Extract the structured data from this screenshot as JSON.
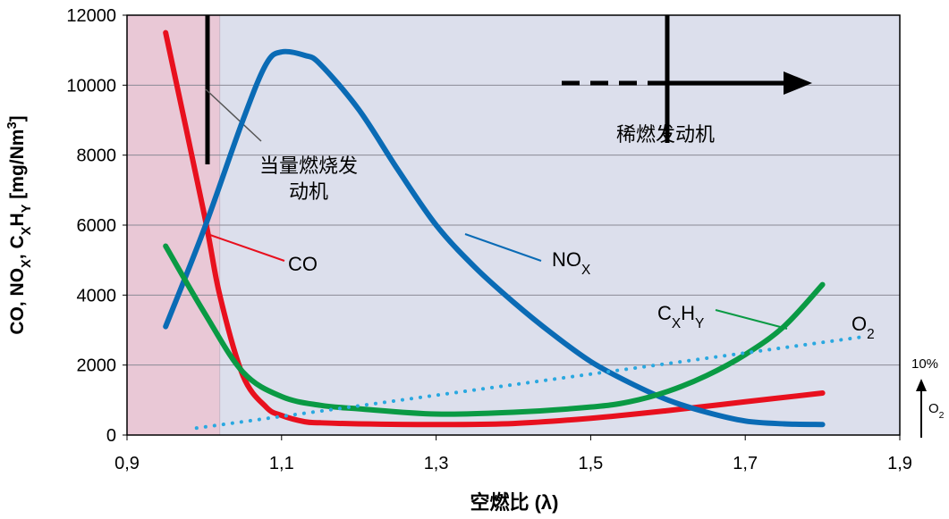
{
  "chart_data": {
    "type": "line",
    "xlabel": "空燃比 (λ)",
    "ylabel_parts": [
      {
        "text": "CO, NO"
      },
      {
        "sub": "X"
      },
      {
        "text": ", C"
      },
      {
        "sub": "X"
      },
      {
        "text": "H"
      },
      {
        "sub": "Y"
      },
      {
        "text": " [mg/Nm"
      },
      {
        "sup": "3"
      },
      {
        "text": "]"
      }
    ],
    "xlim": [
      0.9,
      1.9
    ],
    "xticks": [
      {
        "value": 0.9,
        "label": "0,9"
      },
      {
        "value": 1.1,
        "label": "1,1"
      },
      {
        "value": 1.3,
        "label": "1,3"
      },
      {
        "value": 1.5,
        "label": "1,5"
      },
      {
        "value": 1.7,
        "label": "1,7"
      },
      {
        "value": 1.9,
        "label": "1,9"
      }
    ],
    "ylim": [
      0,
      12000
    ],
    "yticks": [
      0,
      2000,
      4000,
      6000,
      8000,
      10000,
      12000
    ],
    "grid": true,
    "series": [
      {
        "label": [
          {
            "text": "CO"
          }
        ],
        "color": "#e8101e",
        "x": [
          0.95,
          1.0,
          1.02,
          1.05,
          1.08,
          1.1,
          1.13,
          1.15,
          1.2,
          1.3,
          1.4,
          1.5,
          1.6,
          1.7,
          1.8
        ],
        "values": [
          11500,
          6300,
          4000,
          1700,
          800,
          560,
          380,
          350,
          320,
          300,
          330,
          480,
          700,
          950,
          1200
        ]
      },
      {
        "label": [
          {
            "text": "NO"
          },
          {
            "sub": "X"
          }
        ],
        "color": "#0a6bb5",
        "x": [
          0.95,
          1.0,
          1.05,
          1.08,
          1.1,
          1.13,
          1.15,
          1.2,
          1.25,
          1.3,
          1.35,
          1.4,
          1.45,
          1.5,
          1.55,
          1.6,
          1.65,
          1.7,
          1.75,
          1.8
        ],
        "values": [
          3100,
          5900,
          9000,
          10600,
          10950,
          10850,
          10600,
          9300,
          7600,
          6000,
          4800,
          3800,
          2900,
          2100,
          1500,
          1000,
          650,
          400,
          320,
          300
        ]
      },
      {
        "label": [
          {
            "text": "C"
          },
          {
            "sub": "X"
          },
          {
            "text": "H"
          },
          {
            "sub": "Y"
          }
        ],
        "color": "#0a9a44",
        "x": [
          0.95,
          1.0,
          1.05,
          1.1,
          1.15,
          1.2,
          1.3,
          1.4,
          1.5,
          1.55,
          1.6,
          1.65,
          1.7,
          1.75,
          1.8
        ],
        "values": [
          5400,
          3500,
          1800,
          1100,
          850,
          750,
          600,
          650,
          800,
          950,
          1250,
          1700,
          2300,
          3100,
          4300
        ]
      },
      {
        "label": [
          {
            "text": "O"
          },
          {
            "sub": "2"
          }
        ],
        "color": "#2aa8e0",
        "dotted": true,
        "x": [
          0.99,
          1.85
        ],
        "values": [
          200,
          2800
        ]
      }
    ],
    "annotations": {
      "stoich": [
        "当量燃烧发",
        "动机"
      ],
      "lean": "稀燃发动机",
      "o2_scale": "10%",
      "o2_scale_parts": [
        {
          "text": "O"
        },
        {
          "sub": "2"
        }
      ]
    }
  }
}
